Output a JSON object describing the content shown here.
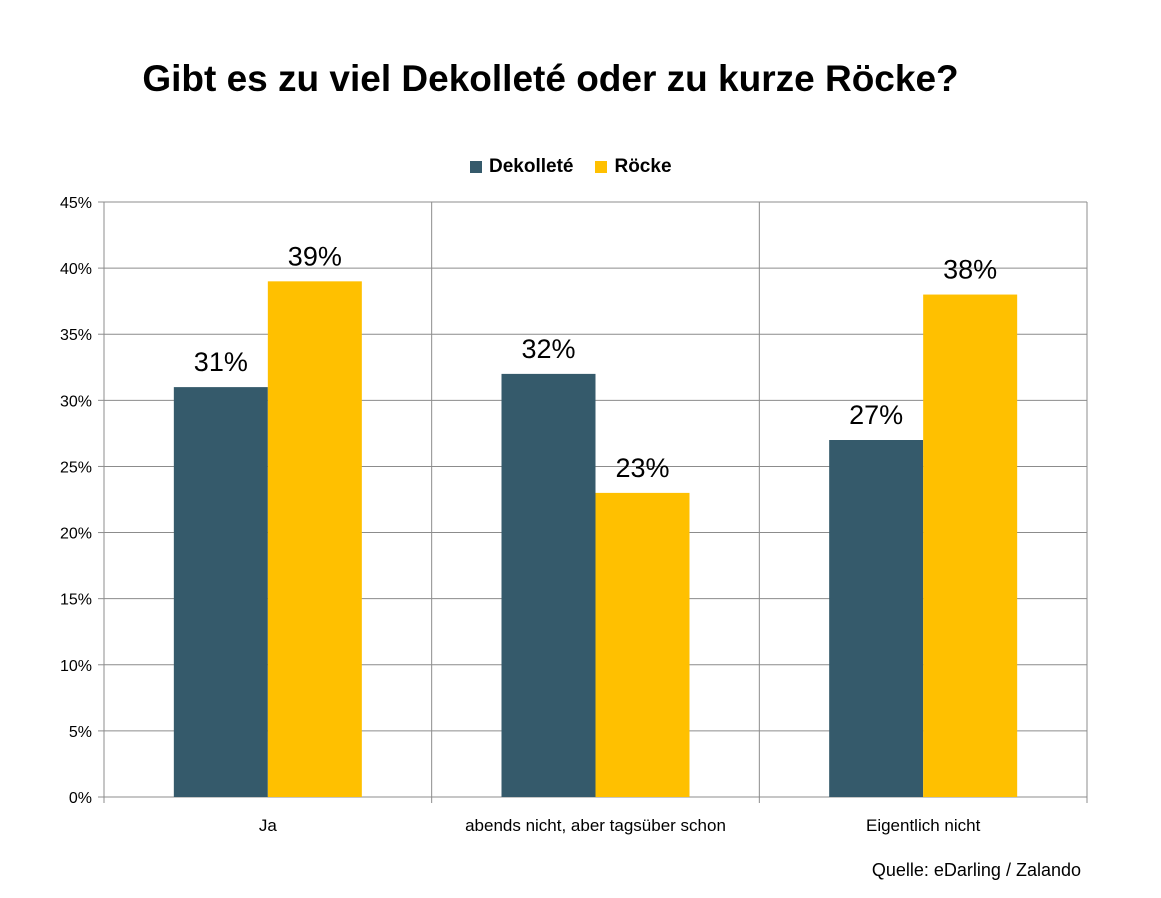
{
  "chart_data": {
    "type": "bar",
    "title": "Gibt es zu viel Dekolleté oder zu kurze Röcke?",
    "categories": [
      "Ja",
      "abends nicht, aber tagsüber schon",
      "Eigentlich nicht"
    ],
    "series": [
      {
        "name": "Dekolleté",
        "color": "#355A6B",
        "values": [
          31,
          32,
          27
        ],
        "labels": [
          "31%",
          "32%",
          "27%"
        ]
      },
      {
        "name": "Röcke",
        "color": "#FFC000",
        "values": [
          39,
          23,
          38
        ],
        "labels": [
          "39%",
          "23%",
          "38%"
        ]
      }
    ],
    "ylim": [
      0,
      45
    ],
    "yticks": [
      0,
      5,
      10,
      15,
      20,
      25,
      30,
      35,
      40,
      45
    ],
    "ytick_labels": [
      "0%",
      "5%",
      "10%",
      "15%",
      "20%",
      "25%",
      "30%",
      "35%",
      "40%",
      "45%"
    ],
    "grid": true,
    "legend_position": "top",
    "xlabel": "",
    "ylabel": ""
  },
  "source": "Quelle: eDarling / Zalando"
}
